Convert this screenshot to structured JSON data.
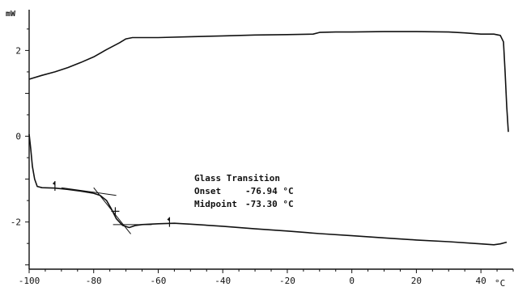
{
  "chart_data": {
    "type": "line",
    "title": "",
    "xlabel": "°C",
    "ylabel": "mW",
    "xlim": [
      -100,
      50
    ],
    "ylim": [
      -3.1,
      2.95
    ],
    "x_ticks": [
      -100,
      -80,
      -60,
      -40,
      -20,
      0,
      20,
      40
    ],
    "y_ticks": [
      2,
      0,
      -2
    ],
    "grid": false,
    "legend": "none",
    "series": [
      {
        "points": [
          [
            -100,
            1.33
          ],
          [
            -96,
            1.42
          ],
          [
            -92,
            1.5
          ],
          [
            -88,
            1.6
          ],
          [
            -84,
            1.72
          ],
          [
            -80,
            1.85
          ],
          [
            -76,
            2.02
          ],
          [
            -72,
            2.18
          ],
          [
            -70,
            2.27
          ],
          [
            -68,
            2.3
          ],
          [
            -60,
            2.3
          ],
          [
            -50,
            2.32
          ],
          [
            -40,
            2.34
          ],
          [
            -30,
            2.36
          ],
          [
            -20,
            2.37
          ],
          [
            -12,
            2.38
          ],
          [
            -10,
            2.42
          ],
          [
            -5,
            2.43
          ],
          [
            0,
            2.43
          ],
          [
            10,
            2.44
          ],
          [
            20,
            2.44
          ],
          [
            30,
            2.43
          ],
          [
            35,
            2.41
          ],
          [
            40,
            2.38
          ],
          [
            44,
            2.38
          ],
          [
            46,
            2.35
          ],
          [
            47,
            2.2
          ],
          [
            47.5,
            1.5
          ],
          [
            48,
            0.7
          ],
          [
            48.5,
            0.1
          ]
        ]
      },
      {
        "points": [
          [
            -100,
            0.05
          ],
          [
            -99.5,
            -0.3
          ],
          [
            -99,
            -0.7
          ],
          [
            -98.3,
            -1.0
          ],
          [
            -97.5,
            -1.17
          ],
          [
            -96,
            -1.2
          ],
          [
            -92,
            -1.21
          ],
          [
            -88,
            -1.24
          ],
          [
            -84,
            -1.28
          ],
          [
            -80,
            -1.33
          ],
          [
            -78,
            -1.38
          ],
          [
            -76,
            -1.5
          ],
          [
            -74.5,
            -1.7
          ],
          [
            -73,
            -1.92
          ],
          [
            -71,
            -2.08
          ],
          [
            -69,
            -2.13
          ],
          [
            -67,
            -2.08
          ],
          [
            -65,
            -2.06
          ],
          [
            -60,
            -2.04
          ],
          [
            -55,
            -2.03
          ],
          [
            -50,
            -2.05
          ],
          [
            -40,
            -2.1
          ],
          [
            -30,
            -2.16
          ],
          [
            -20,
            -2.21
          ],
          [
            -10,
            -2.27
          ],
          [
            0,
            -2.32
          ],
          [
            10,
            -2.37
          ],
          [
            20,
            -2.42
          ],
          [
            30,
            -2.46
          ],
          [
            40,
            -2.51
          ],
          [
            44,
            -2.53
          ],
          [
            46,
            -2.51
          ],
          [
            48,
            -2.47
          ]
        ]
      }
    ],
    "annotations": {
      "title": "Glass Transition",
      "onset_label": "Onset",
      "onset_value": "-76.94 °C",
      "midpoint_label": "Midpoint",
      "midpoint_value": "-73.30 °C"
    },
    "construction_lines": [
      {
        "name": "baseline-before",
        "from": [
          -90,
          -1.2
        ],
        "to": [
          -73,
          -1.38
        ]
      },
      {
        "name": "inflection-tangent",
        "from": [
          -80,
          -1.2
        ],
        "to": [
          -68.5,
          -2.28
        ]
      },
      {
        "name": "baseline-after",
        "from": [
          -74,
          -2.06
        ],
        "to": [
          -62,
          -2.06
        ]
      }
    ],
    "markers": [
      {
        "name": "limit-marker-left",
        "x": -92,
        "y": -1.16
      },
      {
        "name": "midpoint-marker",
        "x": -73.3,
        "y": -1.75
      },
      {
        "name": "limit-marker-right",
        "x": -56.5,
        "y": -2.0
      }
    ]
  }
}
